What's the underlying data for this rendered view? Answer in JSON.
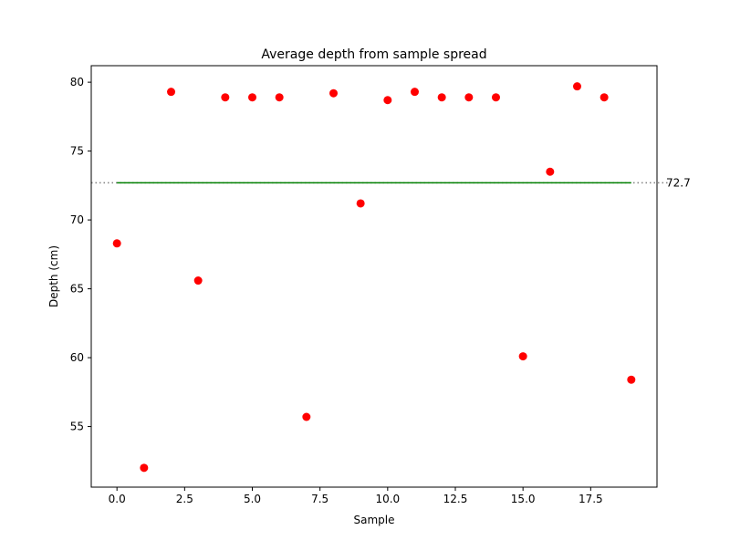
{
  "chart_data": {
    "type": "scatter",
    "title": "Average depth from sample spread",
    "xlabel": "Sample",
    "ylabel": "Depth (cm)",
    "xlim": [
      -0.95,
      19.95
    ],
    "ylim": [
      50.6,
      81.2
    ],
    "xticks": [
      0.0,
      2.5,
      5.0,
      7.5,
      10.0,
      12.5,
      15.0,
      17.5
    ],
    "xtick_labels": [
      "0.0",
      "2.5",
      "5.0",
      "7.5",
      "10.0",
      "12.5",
      "15.0",
      "17.5"
    ],
    "yticks": [
      55,
      60,
      65,
      70,
      75,
      80
    ],
    "ytick_labels": [
      "55",
      "60",
      "65",
      "70",
      "75",
      "80"
    ],
    "grid": false,
    "series": [
      {
        "color": "#ff0000",
        "marker": "circle",
        "x": [
          0,
          1,
          2,
          3,
          4,
          5,
          6,
          7,
          8,
          9,
          10,
          11,
          12,
          13,
          14,
          15,
          16,
          17,
          18,
          19
        ],
        "y": [
          68.3,
          52.0,
          79.3,
          65.6,
          78.9,
          78.9,
          78.9,
          55.7,
          79.2,
          71.2,
          78.7,
          79.3,
          78.9,
          78.9,
          78.9,
          60.1,
          73.5,
          79.7,
          78.9,
          58.4
        ]
      }
    ],
    "mean_line": {
      "value": 72.7,
      "label": "72.7",
      "color": "#008000",
      "x_range": [
        0,
        19
      ],
      "reference_color": "#808080",
      "reference_style": "dotted"
    }
  }
}
